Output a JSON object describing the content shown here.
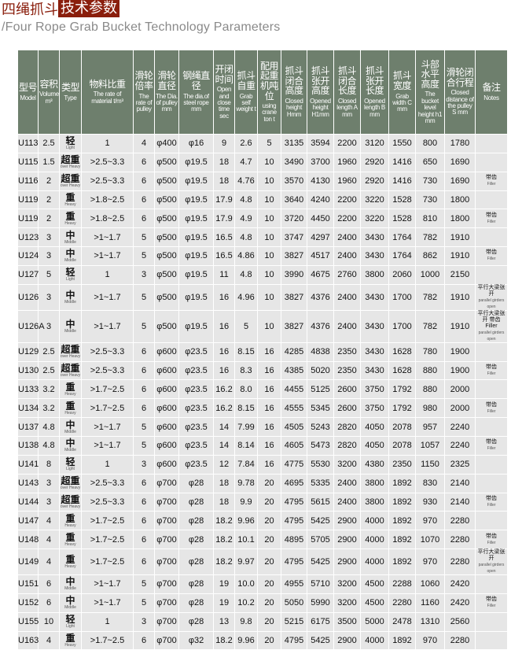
{
  "title": {
    "part1": "四绳抓斗",
    "part2": "技术参数"
  },
  "subtitle": "/Four Rope Grab Bucket Technology Parameters",
  "colors": {
    "title_red": "#8a1e0c",
    "header_bg": "#6e7f6d",
    "cell_bg": "#e6e6e6"
  },
  "columns": [
    {
      "cn": "型号",
      "en": "Model"
    },
    {
      "cn": "容积",
      "en": "Volume m³"
    },
    {
      "cn": "类型",
      "en": "Type"
    },
    {
      "cn": "物料比重",
      "en": "The rate of material t/m³"
    },
    {
      "cn": "滑轮倍率",
      "en": "The rate of pulley"
    },
    {
      "cn": "滑轮直径",
      "en": "The Dia. of pulley mm"
    },
    {
      "cn": "钢绳直径",
      "en": "The dia.of steel rope mm"
    },
    {
      "cn": "开闭时间",
      "en": "Open and close time sec"
    },
    {
      "cn": "抓斗自重",
      "en": "Grab self weight t"
    },
    {
      "cn": "配用起重机吨位",
      "en": "using crane ton t"
    },
    {
      "cn": "抓斗闭合高度",
      "en": "Closed height Hmm"
    },
    {
      "cn": "抓斗张开高度",
      "en": "Opened height H1mm"
    },
    {
      "cn": "抓斗闭合长度",
      "en": "Closed length A mm"
    },
    {
      "cn": "抓斗张开长度",
      "en": "Opened length B mm"
    },
    {
      "cn": "抓斗宽度",
      "en": "Grab width C mm"
    },
    {
      "cn": "斗部水平高度",
      "en": "The bucket level height h1 mm"
    },
    {
      "cn": "滑轮闭合行程",
      "en": "Closed distance of the pulley S mm"
    },
    {
      "cn": "备注",
      "en": "Notes"
    }
  ],
  "rows": [
    [
      "U113",
      "2.5",
      "轻",
      "Light",
      "1",
      "4",
      "φ400",
      "φ16",
      "9",
      "2.6",
      "5",
      "3135",
      "3594",
      "2200",
      "3120",
      "1550",
      "800",
      "1780",
      "",
      ""
    ],
    [
      "U115",
      "1.5",
      "超重",
      "over Heavy",
      ">2.5~3.3",
      "6",
      "φ500",
      "φ19.5",
      "18",
      "4.7",
      "10",
      "3490",
      "3700",
      "1960",
      "2920",
      "1416",
      "650",
      "1690",
      "",
      ""
    ],
    [
      "U116",
      "2",
      "超重",
      "over Heavy",
      ">2.5~3.3",
      "6",
      "φ500",
      "φ19.5",
      "18",
      "4.76",
      "10",
      "3570",
      "4130",
      "1960",
      "2920",
      "1416",
      "730",
      "1690",
      "带齿",
      "Filler"
    ],
    [
      "U119",
      "2",
      "重",
      "Heavy",
      ">1.8~2.5",
      "6",
      "φ500",
      "φ19.5",
      "17.9",
      "4.8",
      "10",
      "3640",
      "4240",
      "2200",
      "3220",
      "1528",
      "730",
      "1800",
      "",
      ""
    ],
    [
      "U119",
      "2",
      "重",
      "Heavy",
      ">1.8~2.5",
      "6",
      "φ500",
      "φ19.5",
      "17.9",
      "4.9",
      "10",
      "3720",
      "4450",
      "2200",
      "3220",
      "1528",
      "810",
      "1800",
      "带齿",
      "Filler"
    ],
    [
      "U123",
      "3",
      "中",
      "Middle",
      ">1~1.7",
      "5",
      "φ500",
      "φ19.5",
      "16.5",
      "4.8",
      "10",
      "3747",
      "4297",
      "2400",
      "3430",
      "1764",
      "782",
      "1910",
      "",
      ""
    ],
    [
      "U124",
      "3",
      "中",
      "Middle",
      ">1~1.7",
      "5",
      "φ500",
      "φ19.5",
      "16.5",
      "4.86",
      "10",
      "3827",
      "4517",
      "2400",
      "3430",
      "1764",
      "862",
      "1910",
      "带齿",
      "Filler"
    ],
    [
      "U127",
      "5",
      "轻",
      "Light",
      "1",
      "3",
      "φ500",
      "φ19.5",
      "11",
      "4.8",
      "10",
      "3990",
      "4675",
      "2760",
      "3800",
      "2060",
      "1000",
      "2150",
      "",
      ""
    ],
    [
      "U126",
      "3",
      "中",
      "Middle",
      ">1~1.7",
      "5",
      "φ500",
      "φ19.5",
      "16",
      "4.96",
      "10",
      "3827",
      "4376",
      "2400",
      "3430",
      "1700",
      "782",
      "1910",
      "平行大梁张开",
      "parallel girders open"
    ],
    [
      "U126A",
      "3",
      "中",
      "Middle",
      ">1~1.7",
      "5",
      "φ500",
      "φ19.5",
      "16",
      "5",
      "10",
      "3827",
      "4376",
      "2400",
      "3430",
      "1700",
      "782",
      "1910",
      "平行大梁张开 带齿 Filler",
      "parallel girders open"
    ],
    [
      "U129",
      "2.5",
      "超重",
      "over Heavy",
      ">2.5~3.3",
      "6",
      "φ600",
      "φ23.5",
      "16",
      "8.15",
      "16",
      "4285",
      "4838",
      "2350",
      "3430",
      "1628",
      "780",
      "1900",
      "",
      ""
    ],
    [
      "U130",
      "2.5",
      "超重",
      "over Heavy",
      ">2.5~3.3",
      "6",
      "φ600",
      "φ23.5",
      "16",
      "8.3",
      "16",
      "4385",
      "5020",
      "2350",
      "3430",
      "1628",
      "880",
      "1900",
      "带齿",
      "Filler"
    ],
    [
      "U133",
      "3.2",
      "重",
      "Heavy",
      ">1.7~2.5",
      "6",
      "φ600",
      "φ23.5",
      "16.2",
      "8.0",
      "16",
      "4455",
      "5125",
      "2600",
      "3750",
      "1792",
      "880",
      "2000",
      "",
      ""
    ],
    [
      "U134",
      "3.2",
      "重",
      "Heavy",
      ">1.7~2.5",
      "6",
      "φ600",
      "φ23.5",
      "16.2",
      "8.15",
      "16",
      "4555",
      "5345",
      "2600",
      "3750",
      "1792",
      "980",
      "2000",
      "带齿",
      "Filler"
    ],
    [
      "U137",
      "4.8",
      "中",
      "Middle",
      ">1~1.7",
      "5",
      "φ600",
      "φ23.5",
      "14",
      "7.99",
      "16",
      "4505",
      "5243",
      "2820",
      "4050",
      "2078",
      "957",
      "2240",
      "",
      ""
    ],
    [
      "U138",
      "4.8",
      "中",
      "Middle",
      ">1~1.7",
      "5",
      "φ600",
      "φ23.5",
      "14",
      "8.14",
      "16",
      "4605",
      "5473",
      "2820",
      "4050",
      "2078",
      "1057",
      "2240",
      "带齿",
      "Filler"
    ],
    [
      "U141",
      "8",
      "轻",
      "Light",
      "1",
      "3",
      "φ600",
      "φ23.5",
      "12",
      "7.84",
      "16",
      "4775",
      "5530",
      "3200",
      "4380",
      "2350",
      "1150",
      "2325",
      "",
      ""
    ],
    [
      "U143",
      "3",
      "超重",
      "over Heavy",
      ">2.5~3.3",
      "6",
      "φ700",
      "φ28",
      "18",
      "9.78",
      "20",
      "4695",
      "5335",
      "2400",
      "3800",
      "1892",
      "830",
      "2140",
      "",
      ""
    ],
    [
      "U144",
      "3",
      "超重",
      "over Heavy",
      ">2.5~3.3",
      "6",
      "φ700",
      "φ28",
      "18",
      "9.9",
      "20",
      "4795",
      "5615",
      "2400",
      "3800",
      "1892",
      "930",
      "2140",
      "带齿",
      "Filler"
    ],
    [
      "U147",
      "4",
      "重",
      "Heavy",
      ">1.7~2.5",
      "6",
      "φ700",
      "φ28",
      "18.2",
      "9.96",
      "20",
      "4795",
      "5425",
      "2900",
      "4000",
      "1892",
      "970",
      "2280",
      "",
      ""
    ],
    [
      "U148",
      "4",
      "重",
      "Heavy",
      ">1.7~2.5",
      "6",
      "φ700",
      "φ28",
      "18.2",
      "10.1",
      "20",
      "4895",
      "5705",
      "2900",
      "4000",
      "1892",
      "1070",
      "2280",
      "带齿",
      "Filler"
    ],
    [
      "U149",
      "4",
      "重",
      "Heavy",
      ">1.7~2.5",
      "6",
      "φ700",
      "φ28",
      "18.2",
      "9.97",
      "20",
      "4795",
      "5425",
      "2900",
      "4000",
      "1892",
      "970",
      "2280",
      "平行大梁张开",
      "parallel girders open"
    ],
    [
      "U151",
      "6",
      "中",
      "Middle",
      ">1~1.7",
      "5",
      "φ700",
      "φ28",
      "19",
      "10.0",
      "20",
      "4955",
      "5710",
      "3200",
      "4500",
      "2288",
      "1060",
      "2420",
      "",
      ""
    ],
    [
      "U152",
      "6",
      "中",
      "Middle",
      ">1~1.7",
      "5",
      "φ700",
      "φ28",
      "19",
      "10.2",
      "20",
      "5050",
      "5990",
      "3200",
      "4500",
      "2280",
      "1160",
      "2420",
      "带齿",
      "Filler"
    ],
    [
      "U155",
      "10",
      "轻",
      "Light",
      "1",
      "3",
      "φ700",
      "φ28",
      "13",
      "9.8",
      "20",
      "5215",
      "6175",
      "3500",
      "5000",
      "2478",
      "1310",
      "2560",
      "",
      ""
    ],
    [
      "U163",
      "4",
      "重",
      "Heavy",
      ">1.7~2.5",
      "6",
      "φ700",
      "φ32",
      "18.2",
      "9.96",
      "20",
      "4795",
      "5425",
      "2900",
      "4000",
      "1892",
      "970",
      "2280",
      "",
      ""
    ]
  ]
}
